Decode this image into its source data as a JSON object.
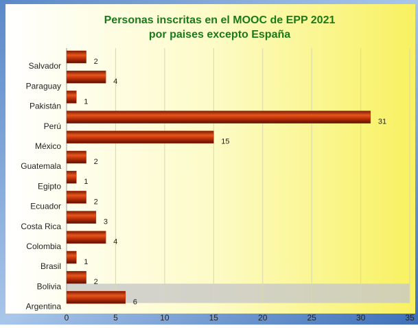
{
  "chart_data": {
    "type": "bar",
    "orientation": "horizontal",
    "title": [
      "Personas inscritas en el MOOC de EPP 2021",
      "por paises excepto España"
    ],
    "categories": [
      "Salvador",
      "Paraguay",
      "Pakistán",
      "Perú",
      "México",
      "Guatemala",
      "Egipto",
      "Ecuador",
      "Costa Rica",
      "Colombia",
      "Brasil",
      "Bolivia",
      "Argentina"
    ],
    "values": [
      2,
      4,
      1,
      31,
      15,
      2,
      1,
      2,
      3,
      4,
      1,
      2,
      6
    ],
    "color": "#c0320a",
    "xlim": [
      0,
      35
    ],
    "xticks": [
      0,
      5,
      10,
      15,
      20,
      25,
      30,
      35
    ],
    "grid": true
  }
}
